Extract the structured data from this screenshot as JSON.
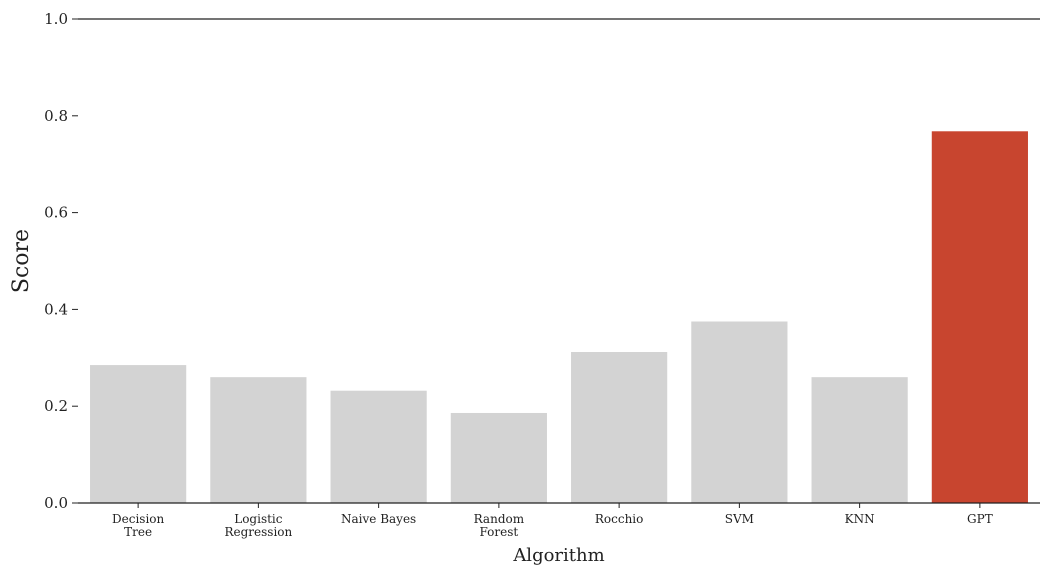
{
  "chart_data": {
    "type": "bar",
    "categories": [
      "Decision Tree",
      "Logistic Regression",
      "Naive Bayes",
      "Random Forest",
      "Rocchio",
      "SVM",
      "KNN",
      "GPT"
    ],
    "category_lines": [
      [
        "Decision",
        "Tree"
      ],
      [
        "Logistic",
        "Regression"
      ],
      [
        "Naive Bayes"
      ],
      [
        "Random",
        "Forest"
      ],
      [
        "Rocchio"
      ],
      [
        "SVM"
      ],
      [
        "KNN"
      ],
      [
        "GPT"
      ]
    ],
    "values": [
      0.285,
      0.26,
      0.232,
      0.186,
      0.312,
      0.375,
      0.26,
      0.768
    ],
    "colors": [
      "#d3d3d3",
      "#d3d3d3",
      "#d3d3d3",
      "#d3d3d3",
      "#d3d3d3",
      "#d3d3d3",
      "#d3d3d3",
      "#c8452f"
    ],
    "xlabel": "Algorithm",
    "ylabel": "Score",
    "ylim": [
      0,
      1.0
    ],
    "yticks": [
      0.0,
      0.2,
      0.4,
      0.6,
      0.8,
      1.0
    ],
    "ytick_labels": [
      "0.0",
      "0.2",
      "0.4",
      "0.6",
      "0.8",
      "1.0"
    ],
    "grid": false,
    "legend": "none"
  }
}
